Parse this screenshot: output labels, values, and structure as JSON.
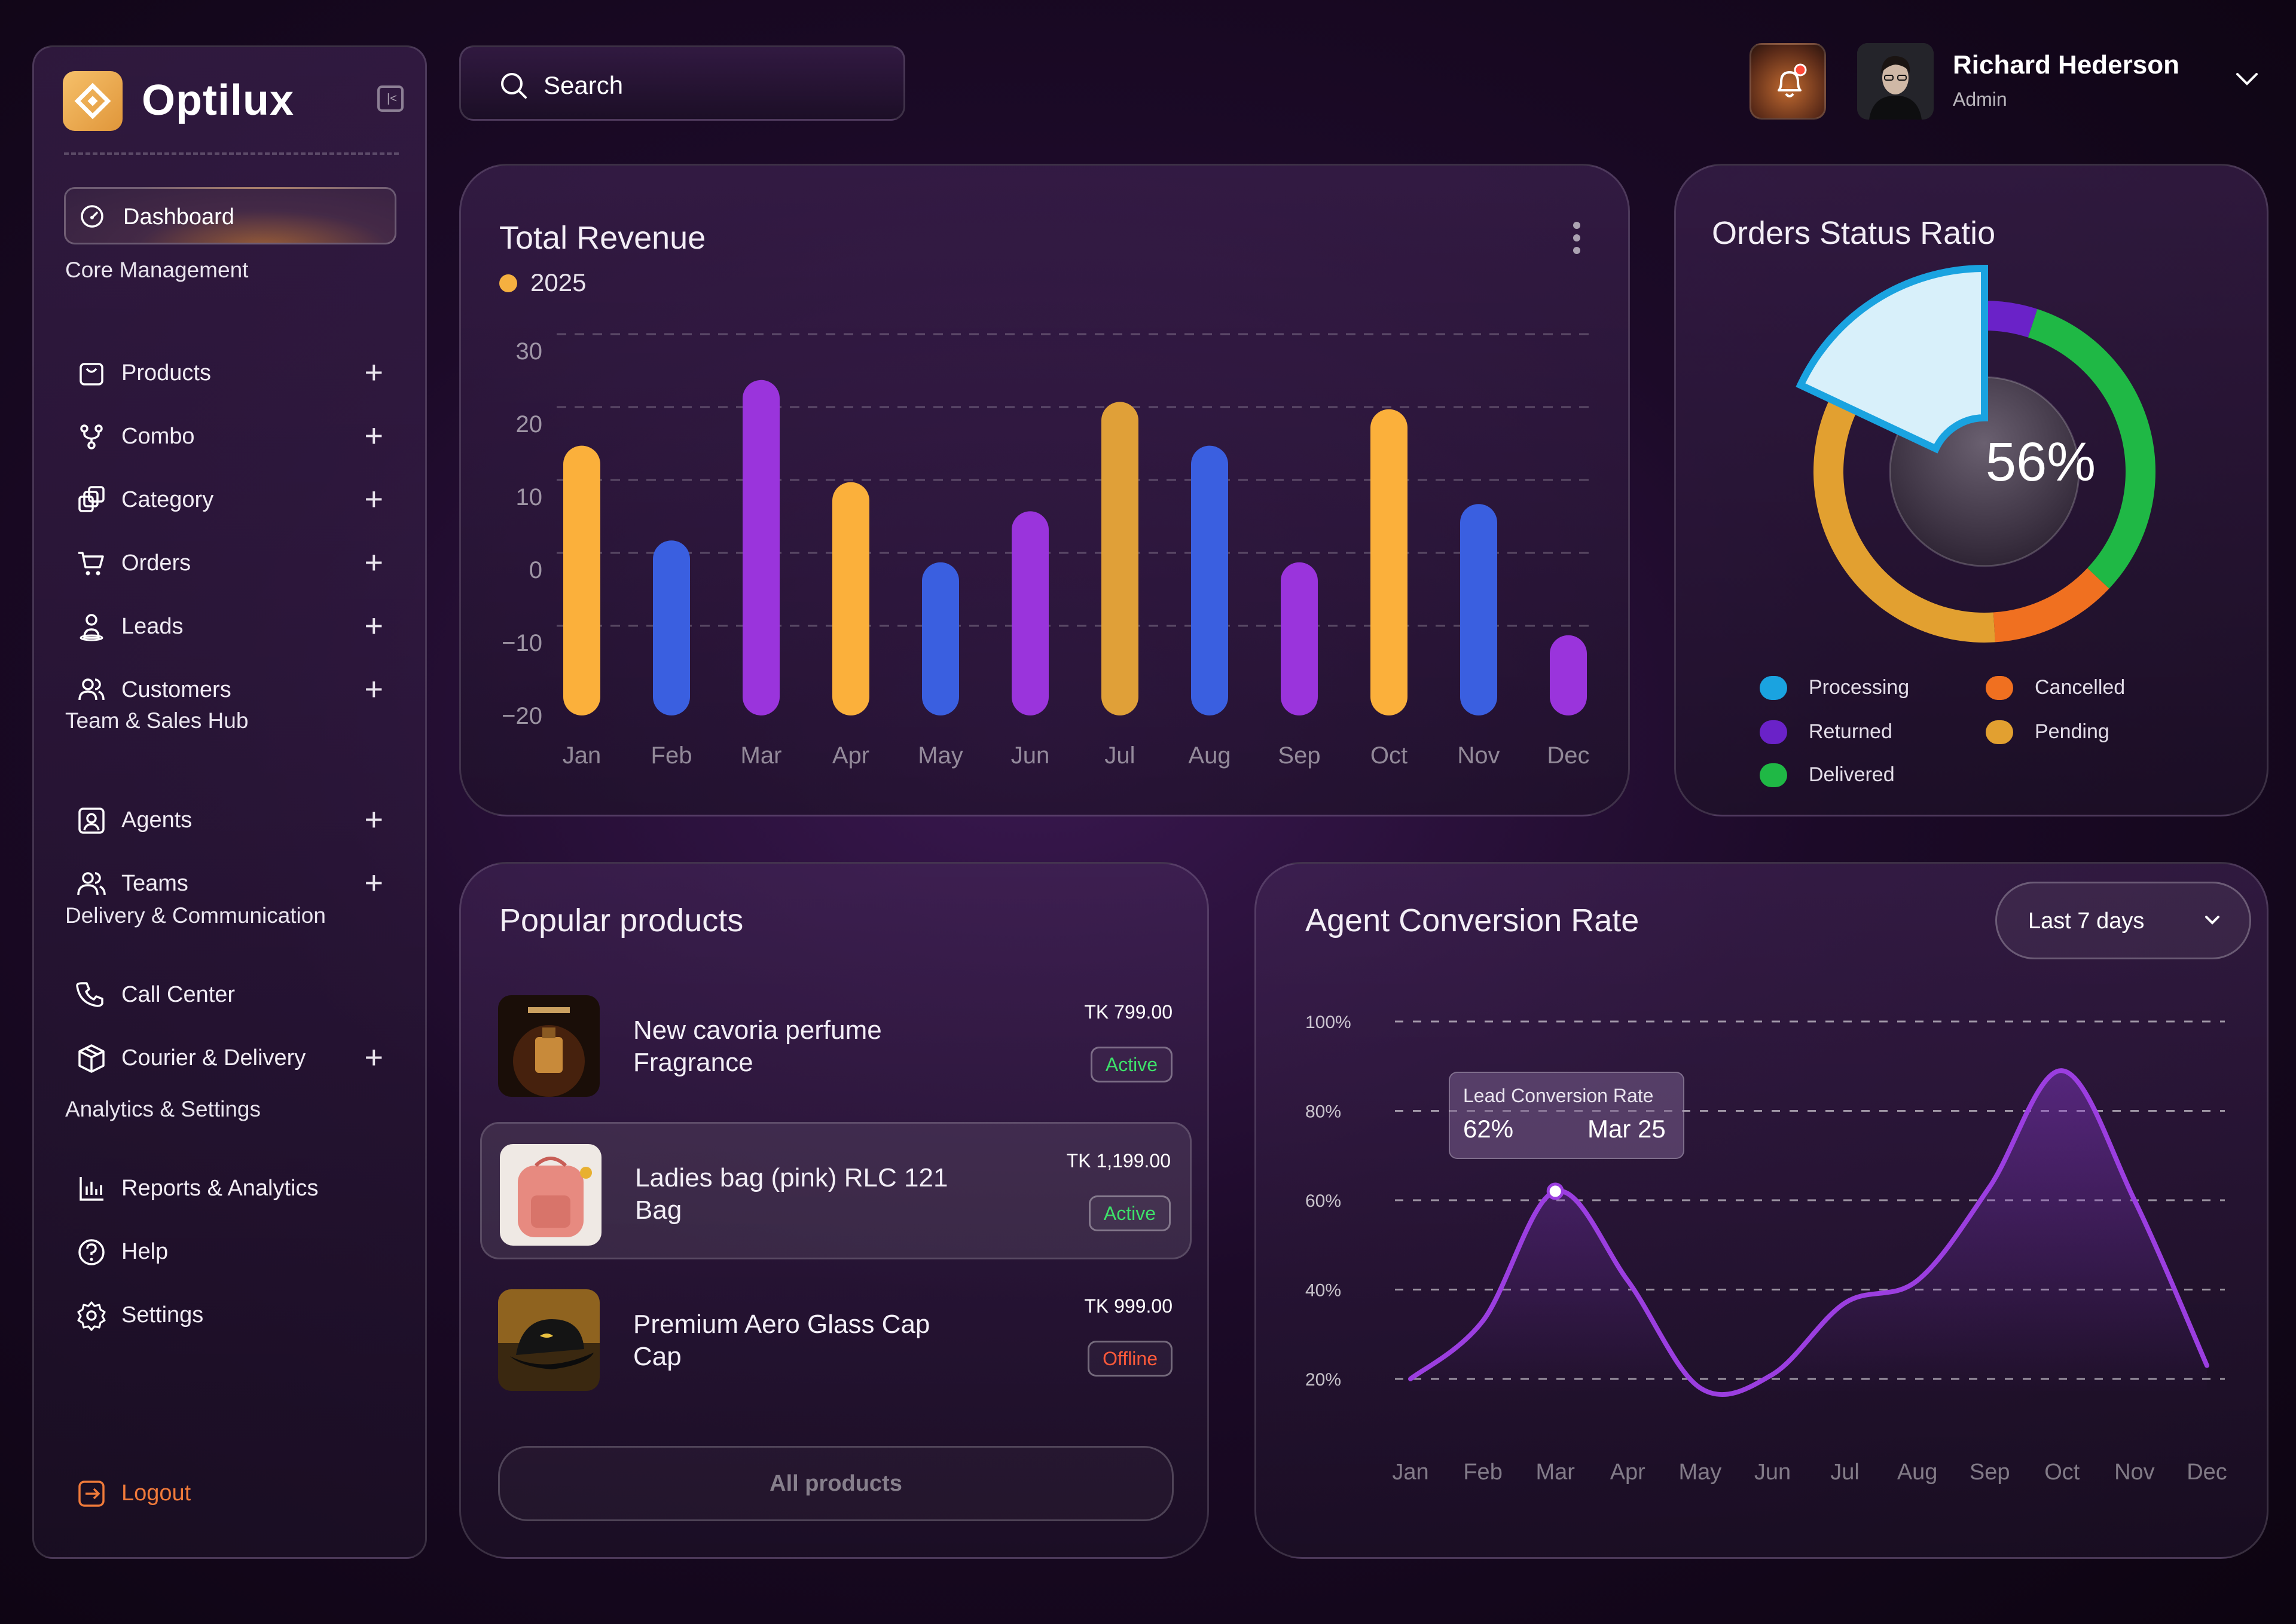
{
  "brand": {
    "name": "Optilux"
  },
  "sidebar": {
    "active": "Dashboard",
    "sections": [
      {
        "title": "Core Management",
        "items": [
          {
            "label": "Products",
            "icon": "bag-icon",
            "expandable": true
          },
          {
            "label": "Combo",
            "icon": "git-branch-icon",
            "expandable": true
          },
          {
            "label": "Category",
            "icon": "layers-icon",
            "expandable": true
          },
          {
            "label": "Orders",
            "icon": "cart-icon",
            "expandable": true
          },
          {
            "label": "Leads",
            "icon": "lead-icon",
            "expandable": true
          },
          {
            "label": "Customers",
            "icon": "users-icon",
            "expandable": true
          }
        ]
      },
      {
        "title": "Team & Sales Hub",
        "items": [
          {
            "label": "Agents",
            "icon": "agent-icon",
            "expandable": true
          },
          {
            "label": "Teams",
            "icon": "teams-icon",
            "expandable": true
          }
        ]
      },
      {
        "title": "Delivery & Communication",
        "items": [
          {
            "label": "Call Center",
            "icon": "phone-icon",
            "expandable": false
          },
          {
            "label": "Courier & Delivery",
            "icon": "box-icon",
            "expandable": true
          }
        ]
      },
      {
        "title": "Analytics & Settings",
        "items": [
          {
            "label": "Reports & Analytics",
            "icon": "chart-icon",
            "expandable": false
          },
          {
            "label": "Help",
            "icon": "help-icon",
            "expandable": false
          },
          {
            "label": "Settings",
            "icon": "gear-icon",
            "expandable": false
          }
        ]
      }
    ],
    "logout": "Logout"
  },
  "search": {
    "placeholder": "Search"
  },
  "user": {
    "name": "Richard Hederson",
    "role": "Admin"
  },
  "revenue": {
    "title": "Total Revenue",
    "legend": "2025"
  },
  "orders_status": {
    "title": "Orders Status Ratio",
    "center": "56%",
    "legend": [
      {
        "label": "Processing",
        "color": "#1aa3e0"
      },
      {
        "label": "Cancelled",
        "color": "#f07020"
      },
      {
        "label": "Returned",
        "color": "#6a22c8"
      },
      {
        "label": "Pending",
        "color": "#e2a030"
      },
      {
        "label": "Delivered",
        "color": "#1fb845"
      }
    ]
  },
  "popular": {
    "title": "Popular products",
    "products": [
      {
        "name": "New cavoria perfume",
        "category": "Fragrance",
        "price": "TK 799.00",
        "status": "Active"
      },
      {
        "name": "Ladies bag (pink) RLC 121",
        "category": "Bag",
        "price": "TK 1,199.00",
        "status": "Active"
      },
      {
        "name": "Premium Aero Glass Cap",
        "category": "Cap",
        "price": "TK 999.00",
        "status": "Offline"
      }
    ],
    "all_button": "All products"
  },
  "agent": {
    "title": "Agent Conversion Rate",
    "range": "Last 7 days",
    "tooltip": {
      "label": "Lead Conversion Rate",
      "value": "62%",
      "date": "Mar 25"
    }
  },
  "chart_data": [
    {
      "type": "bar",
      "title": "Total Revenue",
      "categories": [
        "Jan",
        "Feb",
        "Mar",
        "Apr",
        "May",
        "Jun",
        "Jul",
        "Aug",
        "Sep",
        "Oct",
        "Nov",
        "Dec"
      ],
      "series": [
        {
          "name": "2025",
          "values": [
            17,
            4,
            26,
            12,
            1,
            8,
            23,
            17,
            1,
            22,
            9,
            -9
          ]
        }
      ],
      "colors": [
        "#fbb03b",
        "#3a5fe0",
        "#9a34dc",
        "#fbb03b",
        "#3a5fe0",
        "#9a34dc",
        "#e0a038",
        "#3a5fe0",
        "#9a34dc",
        "#fbb03b",
        "#3a5fe0",
        "#9a34dc"
      ],
      "baseline": -20,
      "yticks": [
        "30",
        "20",
        "10",
        "0",
        "−10",
        "−20"
      ],
      "ylim": [
        -20,
        30
      ],
      "grid": true
    },
    {
      "type": "pie",
      "title": "Orders Status Ratio",
      "center_label": "56%",
      "slices": [
        {
          "label": "Processing",
          "value": 18
        },
        {
          "label": "Returned",
          "value": 5
        },
        {
          "label": "Delivered",
          "value": 32
        },
        {
          "label": "Cancelled",
          "value": 12
        },
        {
          "label": "Pending",
          "value": 33
        }
      ]
    },
    {
      "type": "line",
      "title": "Agent Conversion Rate",
      "categories": [
        "Jan",
        "Feb",
        "Mar",
        "Apr",
        "May",
        "Jun",
        "Jul",
        "Aug",
        "Sep",
        "Oct",
        "Nov",
        "Dec"
      ],
      "values": [
        20,
        33,
        62,
        42,
        18,
        21,
        37,
        42,
        63,
        89,
        60,
        23
      ],
      "yticks": [
        "100%",
        "80%",
        "60%",
        "40%",
        "20%"
      ],
      "ylim": [
        20,
        100
      ],
      "highlight": {
        "category": "Mar",
        "value": 62
      },
      "grid": true
    }
  ]
}
